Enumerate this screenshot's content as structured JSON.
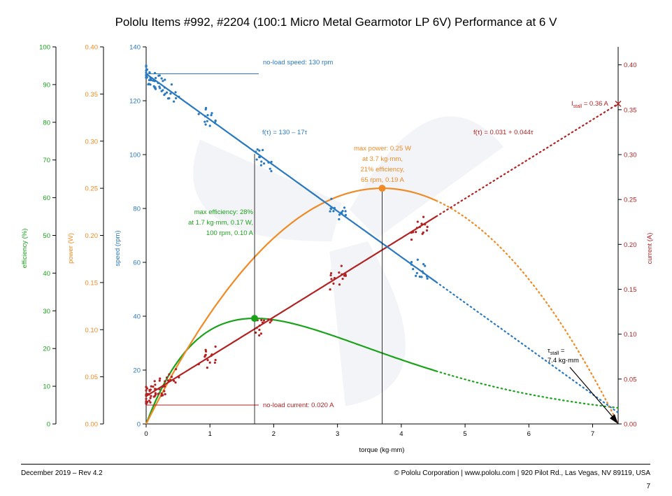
{
  "title": "Pololu Items #992, #2204 (100:1 Micro Metal Gearmotor LP 6V) Performance at 6 V",
  "footer": {
    "left": "December 2019 – Rev 4.2",
    "right": "© Pololu Corporation | www.pololu.com | 920 Pilot Rd., Las Vegas, NV 89119, USA",
    "page": "7"
  },
  "colors": {
    "speed": "#2979c0",
    "current": "#b22222",
    "power": "#f08a24",
    "efficiency": "#1aa31a",
    "axis": "#000000"
  },
  "chart_data": {
    "type": "line",
    "xlabel": "torque (kg·mm)",
    "xlim": [
      0,
      7.4
    ],
    "x_ticks": [
      0,
      1,
      2,
      3,
      4,
      5,
      6,
      7
    ],
    "axes": {
      "efficiency": {
        "label": "efficiency (%)",
        "lim": [
          0,
          100
        ],
        "ticks": [
          "0",
          "10",
          "20",
          "30",
          "40",
          "50",
          "60",
          "70",
          "80",
          "90",
          "100"
        ]
      },
      "power": {
        "label": "power (W)",
        "lim": [
          0,
          0.4
        ],
        "ticks": [
          "0.00",
          "0.05",
          "0.10",
          "0.15",
          "0.20",
          "0.25",
          "0.30",
          "0.35",
          "0.40"
        ]
      },
      "speed": {
        "label": "speed (rpm)",
        "lim": [
          0,
          140
        ],
        "ticks": [
          "0",
          "20",
          "40",
          "60",
          "80",
          "100",
          "120",
          "140"
        ]
      },
      "current": {
        "label": "current (A)",
        "lim": [
          0,
          0.42
        ],
        "ticks": [
          "0.00",
          "0.05",
          "0.10",
          "0.15",
          "0.20",
          "0.25",
          "0.30",
          "0.35",
          "0.40"
        ]
      }
    },
    "series": [
      {
        "name": "speed",
        "formula": "f(τ) = 130 – 17τ",
        "measured_until": 4.55,
        "points": [
          [
            0,
            130
          ],
          [
            7.4,
            0
          ]
        ]
      },
      {
        "name": "current",
        "formula": "f(τ) = 0.031 + 0.044τ",
        "measured_until": 4.55,
        "points": [
          [
            0,
            0.031
          ],
          [
            7.4,
            0.3566
          ]
        ]
      },
      {
        "name": "power",
        "measured_until": 4.55,
        "peak": [
          3.7,
          0.25
        ]
      },
      {
        "name": "efficiency",
        "measured_until": 4.55,
        "peak": [
          1.7,
          28
        ]
      }
    ],
    "annotations": {
      "no_load_speed": "no-load speed: 130 rpm",
      "no_load_current": "no-load current: 0.020 A",
      "speed_formula": "f(τ) = 130 – 17τ",
      "current_formula": "f(τ) = 0.031 + 0.044τ",
      "stall_current": "I",
      "stall_current_sub": "stall",
      "stall_current_val": " = 0.36 A",
      "stall_torque_tau": "τ",
      "stall_torque_sub": "stall",
      "stall_torque_eq": " =",
      "stall_torque_val": "7.4 kg·mm",
      "max_power": [
        "max power: 0.25 W",
        "at 3.7 kg·mm,",
        "21% efficiency,",
        "65 rpm, 0.19 A"
      ],
      "max_efficiency": [
        "max efficiency: 28%",
        "at 1.7 kg·mm, 0.17 W,",
        "100 rpm, 0.10 A"
      ]
    }
  }
}
